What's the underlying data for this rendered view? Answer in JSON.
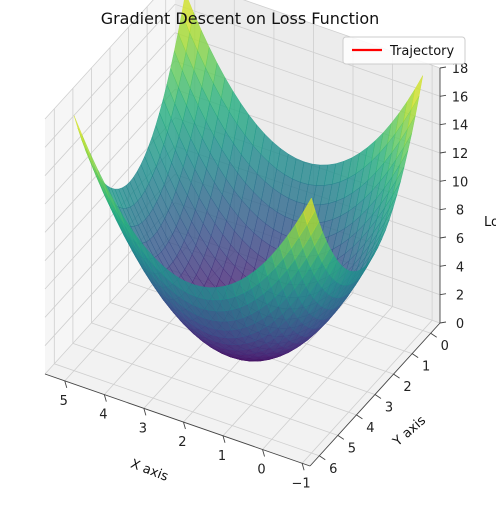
{
  "chart_data": {
    "type": "surface3d",
    "title": "Gradient Descent on Loss Function",
    "xlabel": "X axis",
    "ylabel": "Y axis",
    "zlabel": "Loss",
    "xlim": [
      -1.2,
      5.5
    ],
    "ylim": [
      -0.5,
      6.5
    ],
    "zlim": [
      0,
      18
    ],
    "x_ticks": [
      5,
      4,
      3,
      2,
      1,
      0,
      -1
    ],
    "x_tick_labels": [
      "5",
      "4",
      "3",
      "2",
      "1",
      "0",
      "−1"
    ],
    "y_ticks": [
      0,
      1,
      2,
      3,
      4,
      5,
      6
    ],
    "y_tick_labels": [
      "0",
      "1",
      "2",
      "3",
      "4",
      "5",
      "6"
    ],
    "z_ticks": [
      0,
      2,
      4,
      6,
      8,
      10,
      12,
      14,
      16,
      18
    ],
    "z_tick_labels": [
      "0",
      "2",
      "4",
      "6",
      "8",
      "10",
      "12",
      "14",
      "16",
      "18"
    ],
    "surface": {
      "function": "(x-2)^2 + (y-3)^2",
      "minimum": {
        "x": 2,
        "y": 3,
        "loss": 0
      },
      "colormap": "viridis",
      "alpha": 0.8
    },
    "legend": {
      "position": "top-right",
      "entries": [
        {
          "label": "Trajectory",
          "color": "#ff0000"
        }
      ]
    },
    "grid": true
  }
}
